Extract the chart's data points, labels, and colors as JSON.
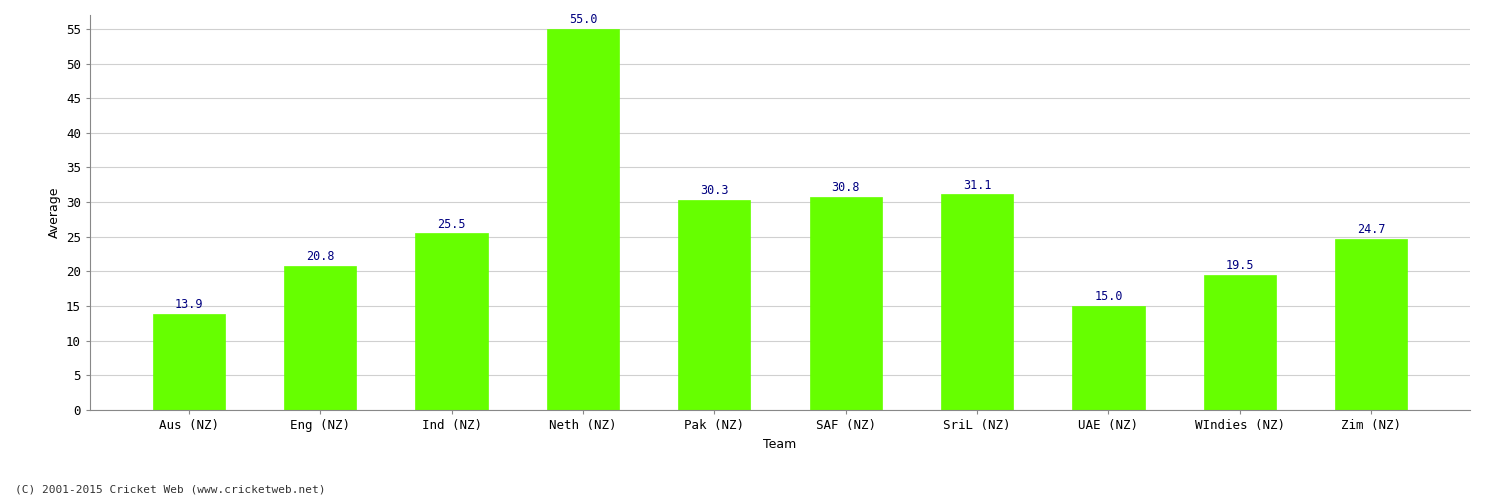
{
  "categories": [
    "Aus (NZ)",
    "Eng (NZ)",
    "Ind (NZ)",
    "Neth (NZ)",
    "Pak (NZ)",
    "SAF (NZ)",
    "SriL (NZ)",
    "UAE (NZ)",
    "WIndies (NZ)",
    "Zim (NZ)"
  ],
  "values": [
    13.9,
    20.8,
    25.5,
    55.0,
    30.3,
    30.8,
    31.1,
    15.0,
    19.5,
    24.7
  ],
  "bar_color": "#66ff00",
  "bar_edge_color": "#66ff00",
  "value_color": "#000080",
  "xlabel": "Team",
  "ylabel": "Average",
  "ylim": [
    0,
    57
  ],
  "yticks": [
    0,
    5,
    10,
    15,
    20,
    25,
    30,
    35,
    40,
    45,
    50,
    55
  ],
  "grid_color": "#d0d0d0",
  "bg_color": "#ffffff",
  "plot_bg_color": "#ffffff",
  "footer": "(C) 2001-2015 Cricket Web (www.cricketweb.net)",
  "xlabel_fontsize": 9,
  "ylabel_fontsize": 9,
  "tick_fontsize": 9,
  "footer_fontsize": 8,
  "value_fontsize": 8.5,
  "bar_width": 0.55
}
